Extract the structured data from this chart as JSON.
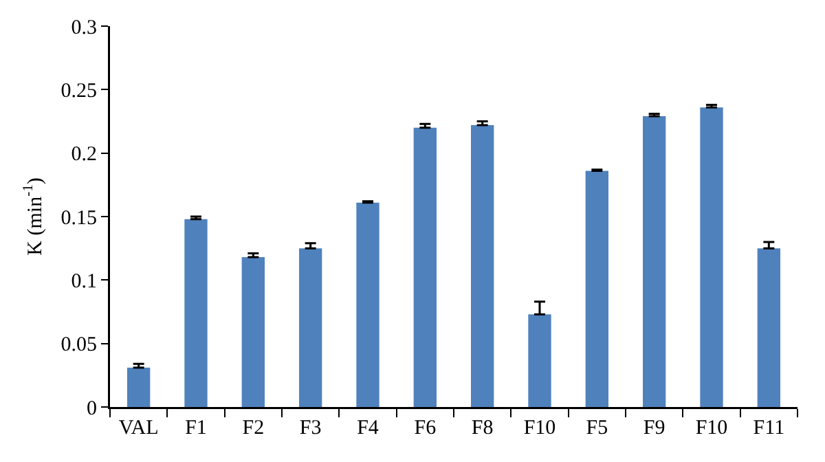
{
  "chart_data": {
    "type": "bar",
    "ylabel": "K (min$^{-1}$)",
    "categories": [
      "VAL",
      "F1",
      "F2",
      "F3",
      "F4",
      "F6",
      "F8",
      "F10",
      "F5",
      "F9",
      "F10",
      "F11"
    ],
    "values": [
      0.031,
      0.148,
      0.118,
      0.125,
      0.161,
      0.22,
      0.222,
      0.073,
      0.186,
      0.229,
      0.236,
      0.125
    ],
    "errors": [
      [
        0.031,
        0.034
      ],
      [
        0.148,
        0.15
      ],
      [
        0.118,
        0.121
      ],
      [
        0.125,
        0.129
      ],
      [
        0.161,
        0.162
      ],
      [
        0.22,
        0.223
      ],
      [
        0.222,
        0.225
      ],
      [
        0.073,
        0.083
      ],
      [
        0.186,
        0.187
      ],
      [
        0.229,
        0.231
      ],
      [
        0.236,
        0.238
      ],
      [
        0.125,
        0.13
      ]
    ],
    "color": "#4f81bd",
    "ylim": [
      0,
      0.3
    ],
    "yticks": [
      0,
      0.05,
      0.1,
      0.15,
      0.2,
      0.25,
      0.3
    ],
    "grid": false
  }
}
